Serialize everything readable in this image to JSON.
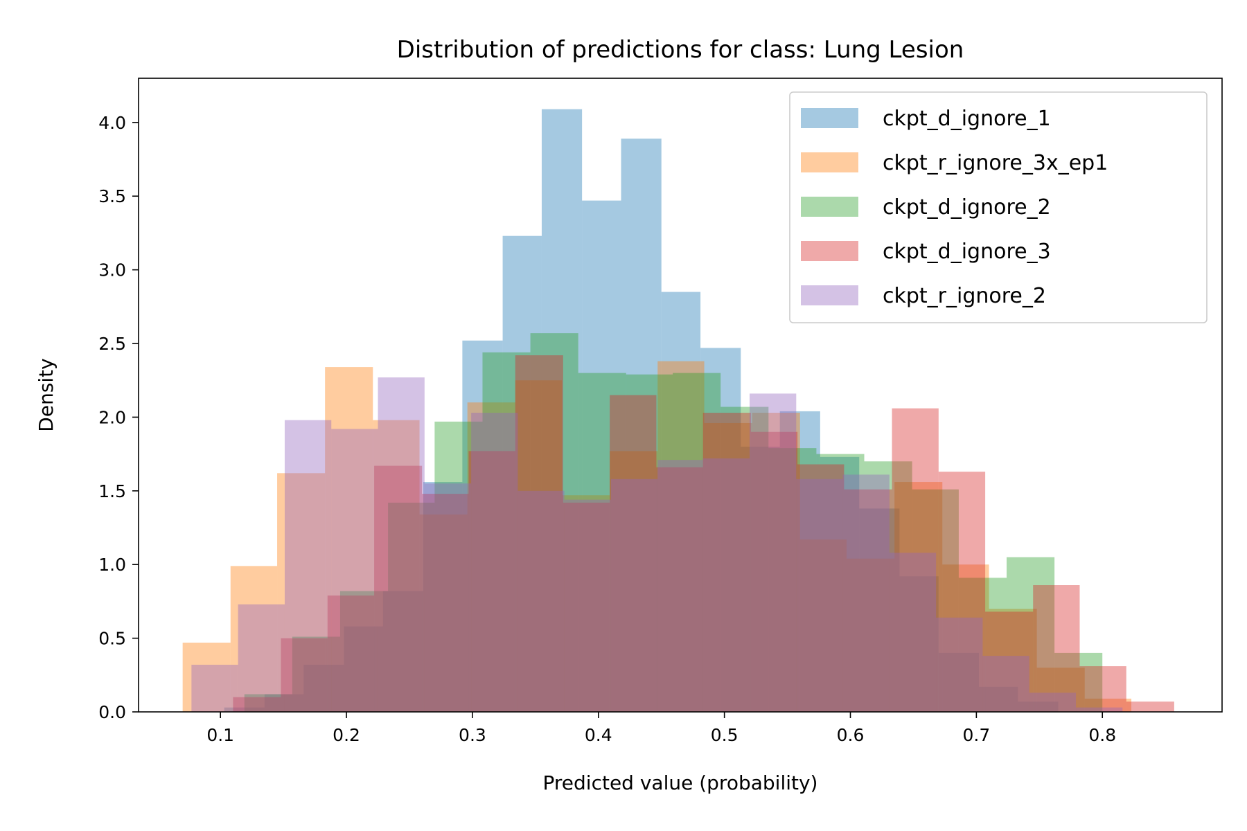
{
  "chart_data": {
    "type": "histogram",
    "title": "Distribution of predictions for class: Lung Lesion",
    "xlabel": "Predicted value (probability)",
    "ylabel": "Density",
    "xlim": [
      0.035,
      0.895
    ],
    "ylim": [
      0,
      4.3
    ],
    "xticks": [
      0.1,
      0.2,
      0.3,
      0.4,
      0.5,
      0.6,
      0.7,
      0.8
    ],
    "xtick_labels": [
      "0.1",
      "0.2",
      "0.3",
      "0.4",
      "0.5",
      "0.6",
      "0.7",
      "0.8"
    ],
    "yticks": [
      0.0,
      0.5,
      1.0,
      1.5,
      2.0,
      2.5,
      3.0,
      3.5,
      4.0
    ],
    "ytick_labels": [
      "0.0",
      "0.5",
      "1.0",
      "1.5",
      "2.0",
      "2.5",
      "3.0",
      "3.5",
      "4.0"
    ],
    "grid": false,
    "legend_position": "top-right",
    "bar_opacity": 0.4,
    "series": [
      {
        "name": "ckpt_d_ignore_1",
        "color": "#1f77b4",
        "bin_edges": [
          0.103,
          0.135,
          0.166,
          0.198,
          0.229,
          0.261,
          0.292,
          0.324,
          0.355,
          0.387,
          0.418,
          0.45,
          0.481,
          0.513,
          0.544,
          0.576,
          0.607,
          0.639,
          0.67,
          0.702,
          0.733,
          0.765
        ],
        "values": [
          0.03,
          0.12,
          0.32,
          0.58,
          0.82,
          1.56,
          2.52,
          3.23,
          4.09,
          3.47,
          3.89,
          2.85,
          2.47,
          1.8,
          2.04,
          1.73,
          1.38,
          0.92,
          0.4,
          0.17,
          0.07
        ]
      },
      {
        "name": "ckpt_r_ignore_3x_ep1",
        "color": "#ff7f0e",
        "bin_edges": [
          0.07,
          0.108,
          0.145,
          0.183,
          0.221,
          0.258,
          0.296,
          0.334,
          0.371,
          0.409,
          0.447,
          0.484,
          0.522,
          0.56,
          0.597,
          0.635,
          0.673,
          0.71,
          0.748,
          0.786,
          0.823
        ],
        "values": [
          0.47,
          0.99,
          1.62,
          2.34,
          1.98,
          1.34,
          2.1,
          2.25,
          1.47,
          1.77,
          2.38,
          1.96,
          2.03,
          1.17,
          1.04,
          1.56,
          1.0,
          0.7,
          0.3,
          0.09
        ]
      },
      {
        "name": "ckpt_d_ignore_2",
        "color": "#2ca02c",
        "bin_edges": [
          0.119,
          0.157,
          0.195,
          0.233,
          0.27,
          0.308,
          0.346,
          0.384,
          0.422,
          0.459,
          0.497,
          0.535,
          0.573,
          0.611,
          0.649,
          0.686,
          0.724,
          0.762,
          0.8
        ],
        "values": [
          0.12,
          0.51,
          0.82,
          1.42,
          1.97,
          2.44,
          2.57,
          2.3,
          2.29,
          2.3,
          2.07,
          1.79,
          1.75,
          1.7,
          1.51,
          0.91,
          1.05,
          0.4,
          0.09
        ]
      },
      {
        "name": "ckpt_d_ignore_3",
        "color": "#d62728",
        "bin_edges": [
          0.11,
          0.148,
          0.185,
          0.222,
          0.26,
          0.297,
          0.334,
          0.372,
          0.409,
          0.446,
          0.483,
          0.521,
          0.558,
          0.595,
          0.633,
          0.67,
          0.707,
          0.745,
          0.782,
          0.819,
          0.857
        ],
        "values": [
          0.1,
          0.5,
          0.79,
          1.67,
          1.48,
          1.77,
          2.42,
          1.42,
          2.15,
          1.66,
          2.03,
          1.9,
          1.68,
          1.51,
          2.06,
          1.63,
          0.68,
          0.86,
          0.31,
          0.07
        ]
      },
      {
        "name": "ckpt_r_ignore_2",
        "color": "#9467bd",
        "bin_edges": [
          0.077,
          0.114,
          0.151,
          0.188,
          0.225,
          0.262,
          0.299,
          0.336,
          0.373,
          0.41,
          0.447,
          0.483,
          0.52,
          0.557,
          0.594,
          0.631,
          0.668,
          0.705,
          0.742,
          0.779,
          0.816
        ],
        "values": [
          0.32,
          0.73,
          1.98,
          1.92,
          2.27,
          1.55,
          2.03,
          1.5,
          1.44,
          1.58,
          1.71,
          1.72,
          2.16,
          1.58,
          1.61,
          1.08,
          0.64,
          0.38,
          0.13,
          0.03
        ]
      }
    ]
  }
}
